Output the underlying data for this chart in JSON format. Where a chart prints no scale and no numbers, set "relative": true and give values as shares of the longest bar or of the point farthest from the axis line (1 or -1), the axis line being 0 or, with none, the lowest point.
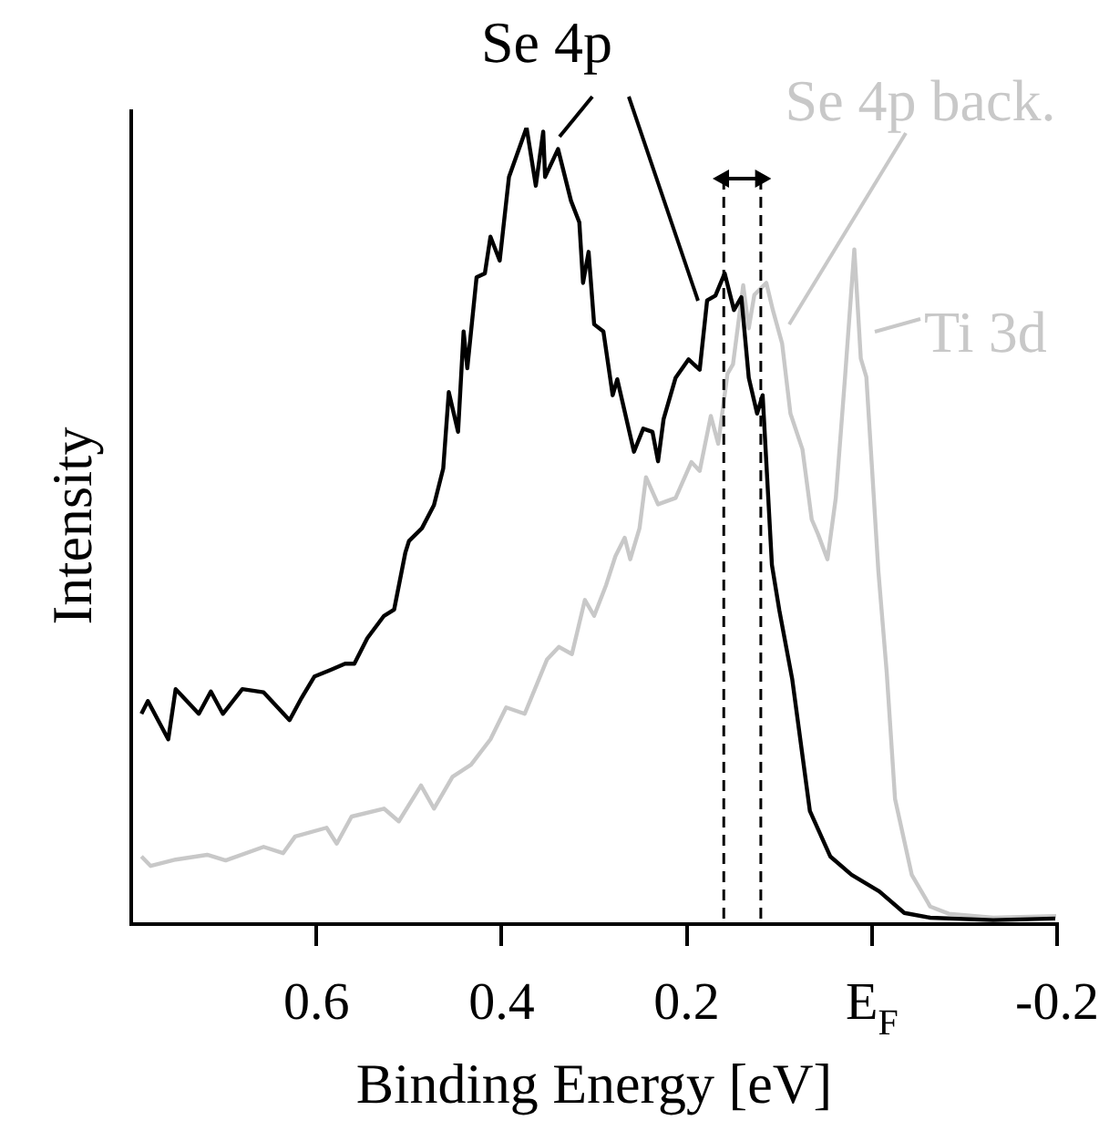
{
  "chart_data": {
    "type": "line",
    "relative": true,
    "xlabel": "Binding Energy [eV]",
    "ylabel": "Intensity",
    "xlim": [
      0.8,
      -0.2
    ],
    "xticks": [
      0.6,
      0.4,
      0.2,
      {
        "value": 0,
        "label": "E$_{F}$"
      },
      -0.2
    ],
    "grid": false,
    "legend": false,
    "marker": "none",
    "line_style": "solid",
    "series": [
      {
        "color": "#000000",
        "x": [
          0.789,
          0.782,
          0.76,
          0.752,
          0.727,
          0.714,
          0.701,
          0.68,
          0.657,
          0.629,
          0.616,
          0.602,
          0.585,
          0.569,
          0.559,
          0.545,
          0.527,
          0.516,
          0.504,
          0.5,
          0.486,
          0.473,
          0.463,
          0.457,
          0.447,
          0.441,
          0.437,
          0.427,
          0.418,
          0.412,
          0.402,
          0.392,
          0.373,
          0.363,
          0.355,
          0.353,
          0.339,
          0.325,
          0.316,
          0.312,
          0.306,
          0.3,
          0.29,
          0.28,
          0.275,
          0.257,
          0.247,
          0.237,
          0.231,
          0.225,
          0.212,
          0.198,
          0.186,
          0.178,
          0.169,
          0.159,
          0.149,
          0.141,
          0.133,
          0.124,
          0.118,
          0.108,
          0.1,
          0.086,
          0.067,
          0.045,
          0.022,
          -0.008,
          -0.035,
          -0.063,
          -0.131,
          -0.198
        ],
        "values": [
          0.264,
          0.28,
          0.232,
          0.295,
          0.264,
          0.292,
          0.264,
          0.295,
          0.291,
          0.256,
          0.284,
          0.311,
          0.319,
          0.327,
          0.327,
          0.359,
          0.387,
          0.395,
          0.466,
          0.481,
          0.497,
          0.526,
          0.572,
          0.668,
          0.618,
          0.744,
          0.698,
          0.812,
          0.817,
          0.863,
          0.833,
          0.938,
          1.0,
          0.927,
          0.995,
          0.938,
          0.973,
          0.908,
          0.881,
          0.805,
          0.844,
          0.753,
          0.744,
          0.664,
          0.684,
          0.593,
          0.622,
          0.618,
          0.581,
          0.634,
          0.686,
          0.709,
          0.696,
          0.783,
          0.789,
          0.817,
          0.771,
          0.787,
          0.686,
          0.641,
          0.664,
          0.451,
          0.394,
          0.307,
          0.142,
          0.085,
          0.062,
          0.041,
          0.014,
          0.008,
          0.005,
          0.007
        ]
      },
      {
        "color": "#c8c8c8",
        "x": [
          0.789,
          0.779,
          0.752,
          0.718,
          0.698,
          0.657,
          0.636,
          0.623,
          0.589,
          0.578,
          0.562,
          0.527,
          0.511,
          0.487,
          0.473,
          0.453,
          0.433,
          0.412,
          0.395,
          0.375,
          0.351,
          0.338,
          0.324,
          0.31,
          0.3,
          0.287,
          0.277,
          0.267,
          0.261,
          0.251,
          0.244,
          0.231,
          0.212,
          0.195,
          0.186,
          0.174,
          0.166,
          0.156,
          0.15,
          0.139,
          0.133,
          0.127,
          0.114,
          0.107,
          0.097,
          0.088,
          0.075,
          0.065,
          0.058,
          0.048,
          0.039,
          0.029,
          0.019,
          0.012,
          0.006,
          -0.007,
          -0.016,
          -0.025,
          -0.043,
          -0.063,
          -0.083,
          -0.131,
          -0.199
        ],
        "values": [
          0.085,
          0.073,
          0.081,
          0.087,
          0.08,
          0.097,
          0.089,
          0.11,
          0.121,
          0.101,
          0.135,
          0.145,
          0.129,
          0.174,
          0.145,
          0.185,
          0.2,
          0.232,
          0.272,
          0.264,
          0.332,
          0.348,
          0.339,
          0.407,
          0.387,
          0.426,
          0.462,
          0.485,
          0.458,
          0.497,
          0.561,
          0.527,
          0.535,
          0.58,
          0.569,
          0.638,
          0.603,
          0.691,
          0.703,
          0.802,
          0.748,
          0.79,
          0.805,
          0.771,
          0.729,
          0.641,
          0.596,
          0.508,
          0.489,
          0.458,
          0.535,
          0.687,
          0.847,
          0.71,
          0.687,
          0.443,
          0.316,
          0.157,
          0.062,
          0.022,
          0.013,
          0.008,
          0.01
        ]
      }
    ],
    "ref_lines": [
      {
        "axis": "x",
        "value": 0.16,
        "line_style": "dashed",
        "color": "#000000"
      },
      {
        "axis": "x",
        "value": 0.12,
        "line_style": "dashed",
        "color": "#000000"
      }
    ],
    "annotations": [
      "Se 4p",
      "Se 4p back.",
      "Ti 3d"
    ]
  }
}
